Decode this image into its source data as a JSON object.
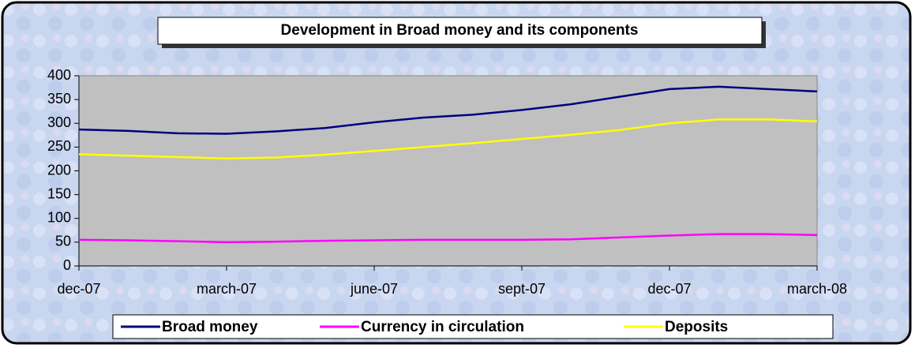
{
  "chart_data": {
    "type": "line",
    "title": "Development in Broad money and its components",
    "categories": [
      "dec-07",
      null,
      null,
      "march-07",
      null,
      null,
      "june-07",
      null,
      null,
      "sept-07",
      null,
      null,
      "dec-07",
      null,
      null,
      "march-08"
    ],
    "series": [
      {
        "name": "Broad money",
        "color": "#000080",
        "values": [
          287,
          284,
          279,
          278,
          283,
          290,
          302,
          312,
          318,
          328,
          340,
          356,
          372,
          377,
          372,
          367
        ]
      },
      {
        "name": "Currency in circulation",
        "color": "#ff00ff",
        "values": [
          55,
          54,
          52,
          50,
          51,
          53,
          54,
          55,
          55,
          55,
          56,
          60,
          64,
          67,
          67,
          65
        ]
      },
      {
        "name": "Deposits",
        "color": "#ffff00",
        "values": [
          235,
          232,
          229,
          226,
          228,
          234,
          242,
          250,
          258,
          267,
          276,
          286,
          300,
          308,
          308,
          304
        ]
      }
    ],
    "ylim": [
      0,
      400
    ],
    "yticks": [
      0,
      50,
      100,
      150,
      200,
      250,
      300,
      350,
      400
    ],
    "legend": "bottom"
  }
}
